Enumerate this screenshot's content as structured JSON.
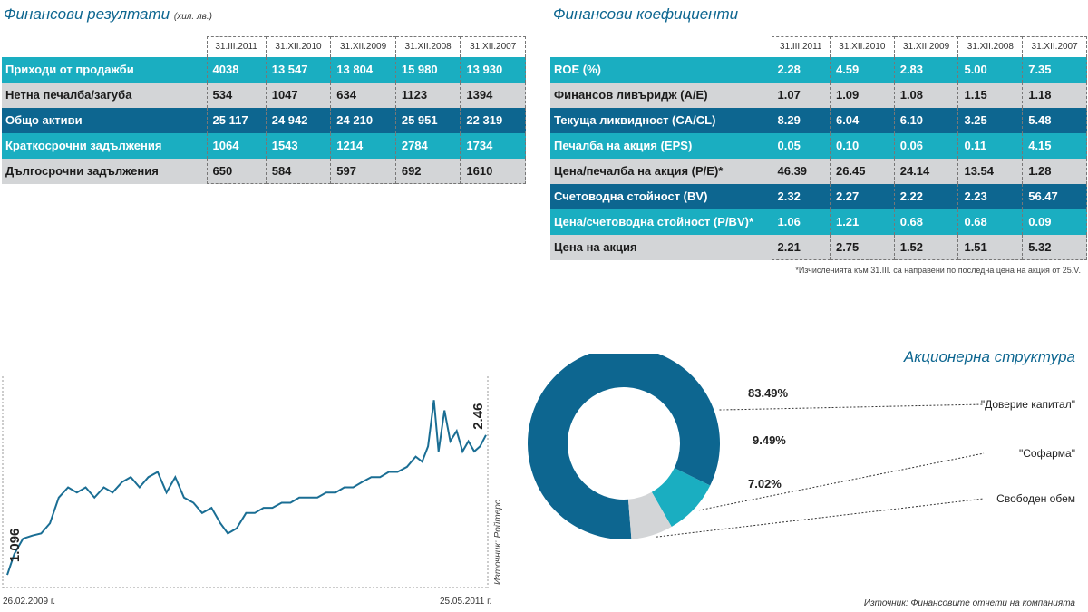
{
  "results": {
    "title": "Финансови резултати",
    "unit": "(хил. лв.)",
    "columns": [
      "31.III.2011",
      "31.XII.2010",
      "31.XII.2009",
      "31.XII.2008",
      "31.XII.2007"
    ],
    "rows": [
      {
        "label": "Приходи от продажби",
        "color": "#1aaec1",
        "style": "teal",
        "values": [
          "4038",
          "13 547",
          "13 804",
          "15 980",
          "13 930"
        ]
      },
      {
        "label": "Нетна печалба/загуба",
        "color": "#d3d5d7",
        "style": "grey",
        "values": [
          "534",
          "1047",
          "634",
          "1123",
          "1394"
        ]
      },
      {
        "label": "Общо активи",
        "color": "#0d6690",
        "style": "navy",
        "values": [
          "25 117",
          "24 942",
          "24 210",
          "25 951",
          "22 319"
        ]
      },
      {
        "label": "Краткосрочни задължения",
        "color": "#1aaec1",
        "style": "teal",
        "values": [
          "1064",
          "1543",
          "1214",
          "2784",
          "1734"
        ]
      },
      {
        "label": "Дългосрочни задължения",
        "color": "#d3d5d7",
        "style": "grey",
        "values": [
          "650",
          "584",
          "597",
          "692",
          "1610"
        ]
      }
    ]
  },
  "ratios": {
    "title": "Финансови коефициенти",
    "columns": [
      "31.III.2011",
      "31.XII.2010",
      "31.XII.2009",
      "31.XII.2008",
      "31.XII.2007"
    ],
    "rows": [
      {
        "label": "ROE (%)",
        "style": "teal",
        "values": [
          "2.28",
          "4.59",
          "2.83",
          "5.00",
          "7.35"
        ]
      },
      {
        "label": "Финансов ливъридж (A/E)",
        "style": "grey",
        "values": [
          "1.07",
          "1.09",
          "1.08",
          "1.15",
          "1.18"
        ]
      },
      {
        "label": "Текуща ликвидност (CA/CL)",
        "style": "navy",
        "values": [
          "8.29",
          "6.04",
          "6.10",
          "3.25",
          "5.48"
        ]
      },
      {
        "label": "Печалба на акция (EPS)",
        "style": "teal",
        "values": [
          "0.05",
          "0.10",
          "0.06",
          "0.11",
          "4.15"
        ]
      },
      {
        "label": "Цена/печалба на акция (P/E)*",
        "style": "grey",
        "values": [
          "46.39",
          "26.45",
          "24.14",
          "13.54",
          "1.28"
        ]
      },
      {
        "label": "Счетоводна стойност (BV)",
        "style": "navy",
        "values": [
          "2.32",
          "2.27",
          "2.22",
          "2.23",
          "56.47"
        ]
      },
      {
        "label": "Цена/счетоводна стойност (P/BV)*",
        "style": "teal",
        "values": [
          "1.06",
          "1.21",
          "0.68",
          "0.68",
          "0.09"
        ]
      },
      {
        "label": "Цена на акция",
        "style": "grey",
        "values": [
          "2.21",
          "2.75",
          "1.52",
          "1.51",
          "5.32"
        ]
      }
    ],
    "footnote": "*Изчисленията към 31.III. са направени по последна цена на акция от 25.V."
  },
  "price_chart_labels": {
    "start_date": "26.02.2009 г.",
    "end_date": "25.05.2011 г.",
    "start_value": "1.096",
    "end_value": "2.46",
    "source": "Източник: Ройтерс"
  },
  "shareholders_labels": {
    "title": "Акционерна структура",
    "source": "Източник: Финансовите отчети на компанията"
  },
  "colors": {
    "accent": "#0d6690",
    "teal": "#1aaec1",
    "grey": "#d3d5d7",
    "line": "#1a6e94"
  },
  "chart_data": [
    {
      "type": "line",
      "series": [
        {
          "x": [
            "2009-02-26",
            "2009-03-10",
            "2009-03-25",
            "2009-04-10",
            "2009-04-25",
            "2009-05-10",
            "2009-05-25",
            "2009-06-10",
            "2009-06-25",
            "2009-07-10",
            "2009-07-25",
            "2009-08-10",
            "2009-08-25",
            "2009-09-10",
            "2009-09-25",
            "2009-10-10",
            "2009-10-25",
            "2009-11-10",
            "2009-11-25",
            "2009-12-10",
            "2009-12-25",
            "2010-01-10",
            "2010-01-25",
            "2010-02-10",
            "2010-02-25",
            "2010-03-10",
            "2010-03-25",
            "2010-04-10",
            "2010-04-25",
            "2010-05-10",
            "2010-05-25",
            "2010-06-10",
            "2010-06-25",
            "2010-07-10",
            "2010-07-25",
            "2010-08-10",
            "2010-08-25",
            "2010-09-10",
            "2010-09-25",
            "2010-10-10",
            "2010-10-25",
            "2010-11-10",
            "2010-11-25",
            "2010-12-10",
            "2010-12-25",
            "2011-01-10",
            "2011-01-25",
            "2011-02-05",
            "2011-02-15",
            "2011-02-25",
            "2011-03-05",
            "2011-03-15",
            "2011-03-25",
            "2011-04-05",
            "2011-04-15",
            "2011-04-25",
            "2011-05-05",
            "2011-05-15",
            "2011-05-25"
          ],
          "y": [
            1.096,
            1.3,
            1.45,
            1.48,
            1.5,
            1.6,
            1.85,
            1.95,
            1.9,
            1.95,
            1.85,
            1.95,
            1.9,
            2.0,
            2.05,
            1.95,
            2.05,
            2.1,
            1.9,
            2.05,
            1.85,
            1.8,
            1.7,
            1.75,
            1.6,
            1.5,
            1.55,
            1.7,
            1.7,
            1.75,
            1.75,
            1.8,
            1.8,
            1.85,
            1.85,
            1.85,
            1.9,
            1.9,
            1.95,
            1.95,
            2.0,
            2.05,
            2.05,
            2.1,
            2.1,
            2.15,
            2.25,
            2.2,
            2.35,
            2.8,
            2.3,
            2.7,
            2.4,
            2.5,
            2.3,
            2.4,
            2.3,
            2.35,
            2.46
          ]
        }
      ]
    },
    {
      "type": "pie",
      "labels": [
        "\"Доверие капитал\"",
        "\"Софарма\"",
        "Свободен обем"
      ],
      "values": [
        83.49,
        9.49,
        7.02
      ],
      "value_labels": [
        "83.49%",
        "9.49%",
        "7.02%"
      ],
      "colors": [
        "#0d6690",
        "#1aaec1",
        "#d3d5d7"
      ]
    }
  ]
}
